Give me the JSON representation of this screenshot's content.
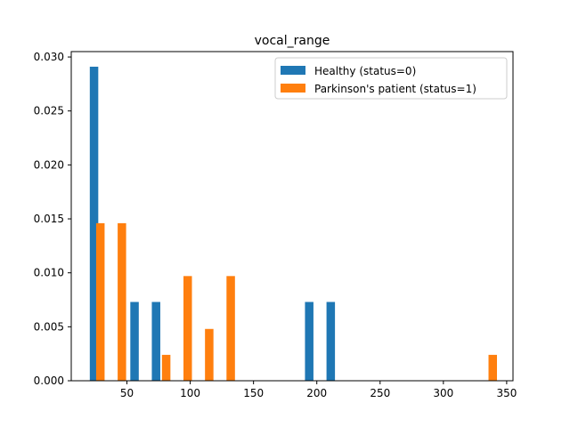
{
  "chart_data": {
    "type": "bar",
    "title": "vocal_range",
    "xlabel": "",
    "ylabel": "",
    "xlim": [
      6,
      355
    ],
    "ylim": [
      0,
      0.0305
    ],
    "x_ticks": [
      50,
      100,
      150,
      200,
      250,
      300,
      350
    ],
    "y_ticks": [
      "0.000",
      "0.005",
      "0.010",
      "0.015",
      "0.020",
      "0.025",
      "0.030"
    ],
    "y_tick_values": [
      0,
      0.005,
      0.01,
      0.015,
      0.02,
      0.025,
      0.03
    ],
    "legend_position": "top-right",
    "series": [
      {
        "name": "Healthy (status=0)",
        "color": "#1f77b4",
        "bars": [
          {
            "x": 24,
            "value": 0.0291
          },
          {
            "x": 56,
            "value": 0.0073
          },
          {
            "x": 73,
            "value": 0.0073
          },
          {
            "x": 194,
            "value": 0.0073
          },
          {
            "x": 211,
            "value": 0.0073
          }
        ]
      },
      {
        "name": "Parkinson's patient (status=1)",
        "color": "#ff7f0e",
        "bars": [
          {
            "x": 29,
            "value": 0.0146
          },
          {
            "x": 46,
            "value": 0.0146
          },
          {
            "x": 81,
            "value": 0.0024
          },
          {
            "x": 98,
            "value": 0.0097
          },
          {
            "x": 115,
            "value": 0.0048
          },
          {
            "x": 132,
            "value": 0.0097
          },
          {
            "x": 339,
            "value": 0.0024
          }
        ]
      }
    ]
  }
}
